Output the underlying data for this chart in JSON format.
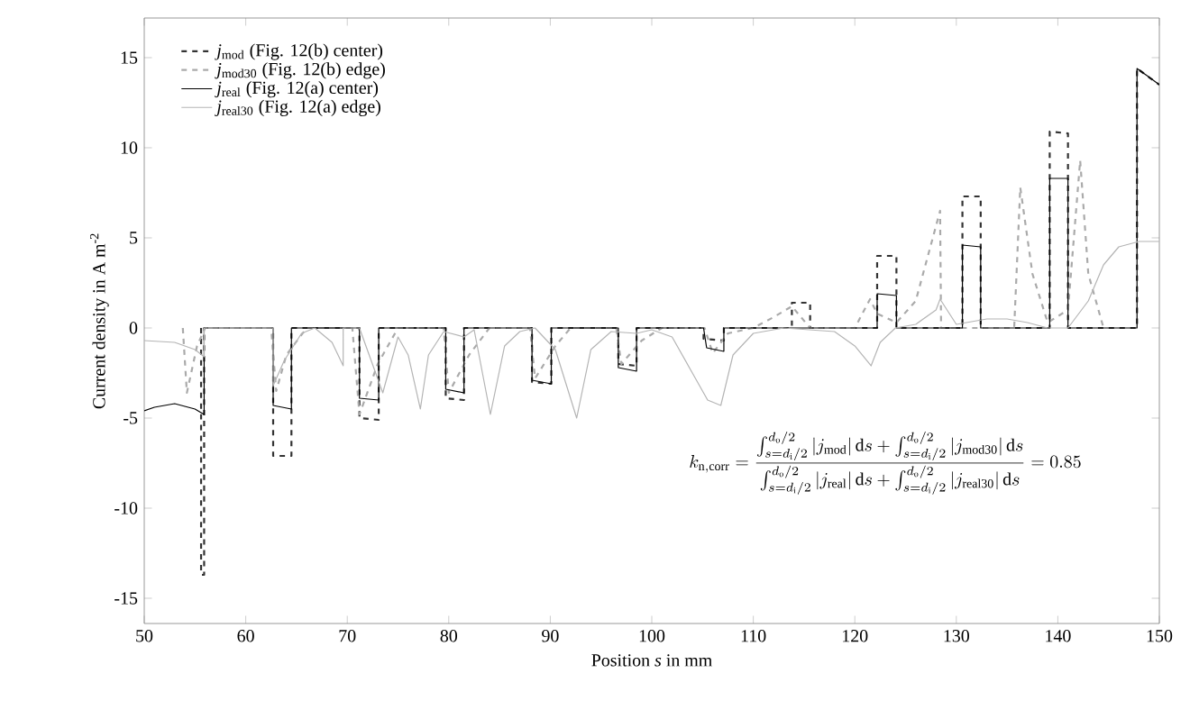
{
  "chart_data": {
    "type": "line",
    "xlabel": "Position *s* in mm",
    "ylabel": "Current density in A m$^{-2}$",
    "xlim": [
      50,
      150
    ],
    "ylim": [
      -16.4,
      17.2
    ],
    "xticks": [
      50,
      60,
      70,
      80,
      90,
      100,
      110,
      120,
      130,
      140,
      150
    ],
    "yticks": [
      -15,
      -10,
      -5,
      0,
      5,
      10,
      15
    ],
    "legend": "top left",
    "annotations": [
      "k_{\\mathrm{n,corr}} = \\frac{\\int_{s=d_\\mathrm{i}/2}^{d_\\mathrm{o}/2} |j_\\mathrm{mod}|\\,\\mathrm{d}s + \\int_{s=d_\\mathrm{i}/2}^{d_\\mathrm{o}/2} |j_\\mathrm{mod30}|\\,\\mathrm{d}s}{\\int_{s=d_\\mathrm{i}/2}^{d_\\mathrm{o}/2} |j_\\mathrm{real}|\\,\\mathrm{d}s + \\int_{s=d_\\mathrm{i}/2}^{d_\\mathrm{o}/2} |j_\\mathrm{real30}|\\,\\mathrm{d}s} = 0.85"
    ],
    "series": [
      {
        "name": "*j*$_{mod}$ (Fig. 12(b) center)",
        "color": "#333333",
        "line_style": "dashed",
        "x": [
          55.6,
          55.6,
          55.9,
          55.9,
          62.7,
          62.7,
          64.5,
          64.5,
          71.2,
          71.2,
          73.1,
          73.1,
          79.7,
          79.7,
          81.5,
          81.5,
          88.2,
          88.2,
          90.1,
          90.1,
          96.7,
          96.7,
          98.5,
          98.5,
          105.1,
          105.1,
          107.1,
          107.1,
          113.8,
          113.8,
          115.6,
          115.6,
          122.2,
          122.2,
          124.1,
          124.1,
          130.6,
          130.6,
          132.4,
          132.4,
          139.2,
          139.2,
          141.0,
          141.0,
          147.8,
          147.8,
          150
        ],
        "values": [
          0,
          -13.7,
          -13.7,
          0,
          0,
          -7.1,
          -7.1,
          0,
          0,
          -5.0,
          -5.1,
          0,
          0,
          -3.9,
          -4.0,
          0,
          0,
          -3.0,
          -3.1,
          0,
          0,
          -2.0,
          -2.1,
          0,
          0,
          -0.6,
          -0.7,
          0,
          0,
          1.4,
          1.4,
          0,
          0,
          4.0,
          4.0,
          0,
          0,
          7.3,
          7.3,
          0,
          0,
          10.9,
          10.8,
          0,
          0,
          14.4,
          13.5
        ]
      },
      {
        "name": "*j*$_{mod30}$ (Fig. 12(b) edge)",
        "color": "#aaaaaa",
        "line_style": "dashed",
        "x": [
          53.8,
          54.2,
          55.2,
          56,
          62.5,
          63,
          64,
          66,
          70.5,
          71.2,
          73,
          75,
          79.5,
          80,
          82,
          84,
          88,
          88.5,
          90.5,
          92,
          96.5,
          97,
          99,
          101,
          105.2,
          106,
          107.5,
          110,
          112,
          113.8,
          115.6,
          120,
          121.5,
          122.2,
          124.1,
          126,
          128.4,
          128.5,
          135.7,
          136.3,
          137.5,
          139,
          141,
          142.2,
          143,
          144.5
        ],
        "values": [
          0,
          -3.6,
          -1.0,
          0,
          0,
          -3.5,
          -1.5,
          0,
          0,
          -4.8,
          -2.0,
          0,
          0,
          -3.6,
          -1.5,
          0,
          0,
          -2.8,
          -1.0,
          0,
          0,
          -2.0,
          -0.7,
          0,
          0,
          -1.4,
          -0.3,
          0,
          0.6,
          1.2,
          0,
          0,
          1.6,
          0.8,
          0.3,
          1.5,
          6.5,
          0,
          0,
          7.8,
          3.0,
          0.3,
          1.0,
          9.3,
          3.0,
          0
        ]
      },
      {
        "name": "*j*$_{real}$ (Fig. 12(a) center)",
        "color": "#000000",
        "line_style": "solid",
        "x": [
          50,
          51,
          53,
          55,
          55.9,
          55.9,
          62.7,
          62.7,
          64.5,
          64.5,
          71.2,
          71.2,
          73.1,
          73.1,
          79.7,
          79.7,
          81.5,
          81.5,
          88.2,
          88.2,
          90.1,
          90.1,
          96.7,
          96.7,
          98.5,
          98.5,
          105.1,
          105.4,
          107.1,
          107.1,
          122.2,
          122.2,
          124.1,
          124.1,
          130.6,
          130.6,
          132.4,
          132.4,
          139.2,
          139.2,
          141.0,
          141.0,
          147.8,
          147.8,
          150
        ],
        "values": [
          -4.6,
          -4.4,
          -4.2,
          -4.5,
          -4.8,
          0,
          0,
          -4.3,
          -4.5,
          0,
          0,
          -3.9,
          -4.0,
          0,
          0,
          -3.4,
          -3.6,
          0,
          0,
          -2.9,
          -3.1,
          0,
          0,
          -2.2,
          -2.4,
          0,
          0,
          -1.1,
          -1.3,
          0,
          0,
          1.9,
          1.8,
          0,
          0,
          4.6,
          4.5,
          0,
          0,
          8.3,
          8.3,
          0,
          0,
          14.4,
          13.5
        ]
      },
      {
        "name": "*j*$_{real30}$ (Fig. 12(a) edge)",
        "color": "#b4b4b4",
        "line_style": "solid",
        "x": [
          50,
          53,
          55,
          55.9,
          55.9,
          62.7,
          62.7,
          63.8,
          65.5,
          66.8,
          68.5,
          69.6,
          69.6,
          71.2,
          73.5,
          75,
          76,
          77.2,
          78,
          79.5,
          81.5,
          82.5,
          84.1,
          85.5,
          87,
          88.5,
          90.5,
          92.6,
          94,
          96,
          98.5,
          100,
          102,
          104,
          105.5,
          106.8,
          108,
          110,
          113,
          118,
          120,
          121.6,
          122.5,
          124,
          126,
          128,
          128.4,
          130,
          133,
          135,
          137,
          139,
          141,
          143,
          144.5,
          146,
          148,
          150
        ],
        "values": [
          -0.7,
          -0.8,
          -1.2,
          -1.6,
          0,
          0,
          -3.2,
          -1.8,
          -0.3,
          0,
          -0.8,
          -2.1,
          0,
          0,
          -3.6,
          -0.5,
          -1.5,
          -4.5,
          -1.5,
          -0.2,
          -0.5,
          -0.1,
          -4.8,
          -1.0,
          -0.2,
          0,
          -1.2,
          -5.0,
          -1.2,
          -0.2,
          -0.3,
          -0.1,
          -0.5,
          -2.5,
          -4.0,
          -4.3,
          -1.5,
          -0.3,
          0,
          -0.2,
          -1.0,
          -2.1,
          -0.8,
          0,
          0.2,
          1.0,
          1.6,
          0.2,
          0.5,
          0.5,
          0.3,
          0,
          0,
          1.5,
          3.5,
          4.5,
          4.8,
          4.8
        ]
      }
    ]
  }
}
